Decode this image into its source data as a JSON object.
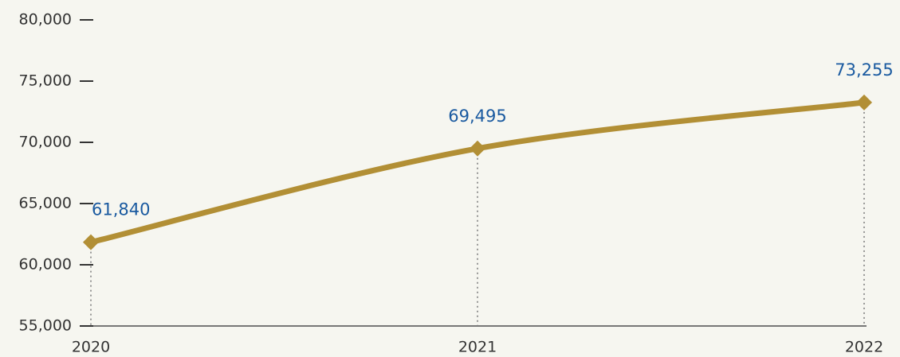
{
  "chart_data": {
    "type": "line",
    "x": [
      "2020",
      "2021",
      "2022"
    ],
    "series": [
      {
        "color": "#b28f35",
        "values": [
          61840,
          69495,
          73255
        ],
        "value_labels": [
          "61,840",
          "69,495",
          "73,255"
        ]
      }
    ],
    "ylim": [
      55000,
      80000
    ],
    "yticks": [
      {
        "value": 55000,
        "label": "55,000"
      },
      {
        "value": 60000,
        "label": "60,000"
      },
      {
        "value": 65000,
        "label": "65,000"
      },
      {
        "value": 70000,
        "label": "70,000"
      },
      {
        "value": 75000,
        "label": "75,000"
      },
      {
        "value": 80000,
        "label": "80,000"
      }
    ]
  }
}
